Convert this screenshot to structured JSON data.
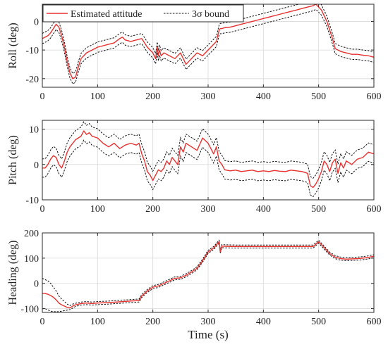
{
  "chart_data": [
    {
      "type": "line",
      "panel": "roll",
      "ylabel": "Roll (deg)",
      "xlabel": "",
      "xlim": [
        0,
        600
      ],
      "ylim": [
        -23,
        6
      ],
      "xticks": [
        "0",
        "100",
        "200",
        "300",
        "400",
        "500",
        "600"
      ],
      "yticks": [
        "-20",
        "-10",
        "0"
      ],
      "ytick_values": [
        -20,
        -10,
        0
      ],
      "grid": true,
      "legend": {
        "placement": "top-left",
        "entries": [
          "Estimated attitude",
          "3σ bound"
        ]
      },
      "band_width": 1.8,
      "series": [
        {
          "name": "Estimated attitude",
          "color": "#e8312f",
          "x": [
            0,
            5,
            10,
            15,
            20,
            25,
            30,
            35,
            40,
            45,
            50,
            55,
            60,
            65,
            70,
            75,
            80,
            90,
            100,
            110,
            120,
            130,
            140,
            145,
            150,
            160,
            170,
            180,
            190,
            200,
            205,
            208,
            210,
            212,
            215,
            220,
            230,
            240,
            250,
            260,
            270,
            280,
            290,
            300,
            310,
            315,
            320,
            322,
            325,
            330,
            340,
            350,
            360,
            370,
            380,
            390,
            400,
            410,
            420,
            430,
            440,
            450,
            460,
            470,
            480,
            490,
            495,
            500,
            505,
            510,
            515,
            520,
            525,
            530,
            540,
            550,
            560,
            570,
            580,
            590,
            600
          ],
          "values": [
            -6,
            -5.5,
            -5,
            -4,
            -2.5,
            -1,
            -2,
            -5,
            -9,
            -14,
            -18,
            -20,
            -19.5,
            -16,
            -13,
            -12,
            -11,
            -10,
            -9,
            -8.5,
            -8,
            -7.5,
            -6,
            -5.5,
            -6.5,
            -7,
            -6.5,
            -6,
            -9,
            -11,
            -13,
            -9,
            -12,
            -10,
            -12,
            -11,
            -12,
            -13,
            -11,
            -15,
            -13,
            -11,
            -12,
            -10,
            -8,
            -7,
            -3,
            -2.5,
            -2.5,
            -2.2,
            -2,
            -1.5,
            -1,
            -0.5,
            0,
            0.5,
            1,
            1.5,
            2,
            2.5,
            3,
            3.5,
            4,
            4.5,
            5,
            5.5,
            6,
            5,
            4,
            2,
            0,
            -3,
            -6,
            -9.5,
            -10.5,
            -11,
            -11.5,
            -11.5,
            -11.8,
            -12,
            -12.5
          ]
        }
      ]
    },
    {
      "type": "line",
      "panel": "pitch",
      "ylabel": "Pitch (deg)",
      "xlabel": "",
      "xlim": [
        0,
        600
      ],
      "ylim": [
        -10,
        12.5
      ],
      "xticks": [
        "0",
        "100",
        "200",
        "300",
        "400",
        "500",
        "600"
      ],
      "yticks": [
        "-10",
        "0",
        "10"
      ],
      "ytick_values": [
        -10,
        0,
        10
      ],
      "grid": true,
      "band_width": 2.6,
      "series": [
        {
          "name": "Estimated attitude",
          "color": "#e8312f",
          "x": [
            0,
            5,
            10,
            15,
            20,
            25,
            30,
            35,
            40,
            45,
            50,
            55,
            60,
            65,
            70,
            75,
            80,
            85,
            90,
            100,
            110,
            120,
            130,
            140,
            150,
            160,
            170,
            175,
            180,
            185,
            190,
            195,
            200,
            205,
            210,
            215,
            220,
            225,
            230,
            235,
            240,
            245,
            250,
            255,
            260,
            270,
            280,
            290,
            300,
            310,
            315,
            320,
            325,
            330,
            340,
            350,
            360,
            370,
            380,
            390,
            400,
            410,
            420,
            430,
            440,
            450,
            460,
            470,
            480,
            485,
            490,
            495,
            500,
            505,
            510,
            515,
            520,
            525,
            530,
            535,
            540,
            545,
            550,
            560,
            570,
            580,
            590,
            600
          ],
          "values": [
            -1,
            -1,
            0,
            1.5,
            2.5,
            2,
            0,
            -1,
            1,
            3.5,
            5,
            6,
            7,
            7.5,
            8,
            9.5,
            8.5,
            9,
            8,
            7.5,
            6,
            5,
            6,
            4.5,
            5.5,
            6,
            5.5,
            6,
            3,
            1,
            -2,
            -3,
            -4.5,
            -3,
            -1.5,
            -2,
            -1,
            1,
            0,
            2,
            1,
            0,
            5,
            3.5,
            6,
            5,
            4,
            7.5,
            6,
            3,
            5,
            1,
            0,
            -1.5,
            -1.8,
            -1.6,
            -2,
            -1.8,
            -1.6,
            -2,
            -1.8,
            -2,
            -1.7,
            -1.9,
            -2,
            -1.6,
            -1.8,
            -2,
            -2.5,
            -6,
            -6.5,
            -5.5,
            -4,
            -2,
            1,
            0,
            -2,
            0.5,
            1.5,
            -2.5,
            0.5,
            -1,
            1,
            0,
            1.5,
            2,
            3.5,
            3
          ]
        }
      ]
    },
    {
      "type": "line",
      "panel": "heading",
      "ylabel": "Heading (deg)",
      "xlabel": "Time (s)",
      "xlim": [
        0,
        600
      ],
      "ylim": [
        -115,
        200
      ],
      "xticks": [
        "0",
        "100",
        "200",
        "300",
        "400",
        "500",
        "600"
      ],
      "yticks": [
        "-100",
        "0",
        "100",
        "200"
      ],
      "ytick_values": [
        -100,
        0,
        100,
        200
      ],
      "grid": true,
      "series": [
        {
          "name": "Estimated attitude",
          "color": "#e8312f",
          "x": [
            0,
            5,
            10,
            15,
            20,
            25,
            30,
            35,
            40,
            45,
            50,
            55,
            60,
            70,
            80,
            90,
            100,
            120,
            140,
            160,
            175,
            180,
            190,
            200,
            210,
            220,
            230,
            240,
            250,
            260,
            270,
            280,
            290,
            300,
            310,
            318,
            320,
            322,
            325,
            330,
            350,
            400,
            450,
            490,
            500,
            510,
            520,
            530,
            540,
            550,
            560,
            570,
            580,
            590,
            600
          ],
          "values": [
            -40,
            -40,
            -43,
            -48,
            -55,
            -65,
            -78,
            -85,
            -90,
            -95,
            -97,
            -90,
            -85,
            -80,
            -78,
            -80,
            -78,
            -76,
            -73,
            -70,
            -68,
            -50,
            -30,
            -15,
            -10,
            0,
            10,
            20,
            22,
            32,
            45,
            60,
            90,
            125,
            140,
            160,
            165,
            125,
            148,
            147,
            146,
            146,
            146,
            146,
            165,
            142,
            118,
            104,
            98,
            96,
            97,
            98,
            100,
            103,
            108
          ]
        }
      ],
      "upper_bound": {
        "x": [
          0,
          5,
          10,
          15,
          20,
          25,
          30,
          35,
          40,
          45,
          50,
          55,
          60,
          70,
          80,
          90,
          100,
          120,
          140,
          160,
          175,
          180,
          190,
          200,
          210,
          220,
          230,
          240,
          250,
          260,
          270,
          280,
          290,
          300,
          310,
          318,
          320,
          322,
          325,
          330,
          350,
          400,
          450,
          490,
          500,
          510,
          520,
          530,
          540,
          550,
          560,
          570,
          580,
          590,
          600
        ],
        "values": [
          20,
          15,
          10,
          0,
          -15,
          -30,
          -50,
          -62,
          -72,
          -82,
          -88,
          -82,
          -79,
          -74,
          -72,
          -74,
          -72,
          -70,
          -67,
          -64,
          -62,
          -44,
          -24,
          -9,
          -4,
          6,
          16,
          26,
          28,
          38,
          51,
          66,
          96,
          131,
          146,
          166,
          171,
          131,
          154,
          153,
          152,
          152,
          152,
          152,
          171,
          148,
          124,
          110,
          104,
          102,
          103,
          104,
          106,
          109,
          114
        ]
      },
      "lower_bound": {
        "x": [
          0,
          5,
          10,
          15,
          20,
          25,
          30,
          35,
          40,
          45,
          50,
          55,
          60,
          70,
          80,
          90,
          100,
          120,
          140,
          160,
          175,
          180,
          190,
          200,
          210,
          220,
          230,
          240,
          250,
          260,
          270,
          280,
          290,
          300,
          310,
          318,
          320,
          322,
          325,
          330,
          350,
          400,
          450,
          490,
          500,
          510,
          520,
          530,
          540,
          550,
          560,
          570,
          580,
          590,
          600
        ],
        "values": [
          -100,
          -100,
          -105,
          -110,
          -112,
          -112,
          -112,
          -110,
          -108,
          -106,
          -104,
          -98,
          -91,
          -86,
          -84,
          -86,
          -84,
          -82,
          -79,
          -76,
          -74,
          -56,
          -36,
          -21,
          -16,
          -6,
          4,
          14,
          16,
          26,
          39,
          54,
          84,
          119,
          134,
          154,
          159,
          119,
          142,
          141,
          140,
          140,
          140,
          140,
          159,
          136,
          112,
          98,
          92,
          90,
          91,
          92,
          94,
          97,
          102
        ]
      }
    }
  ]
}
